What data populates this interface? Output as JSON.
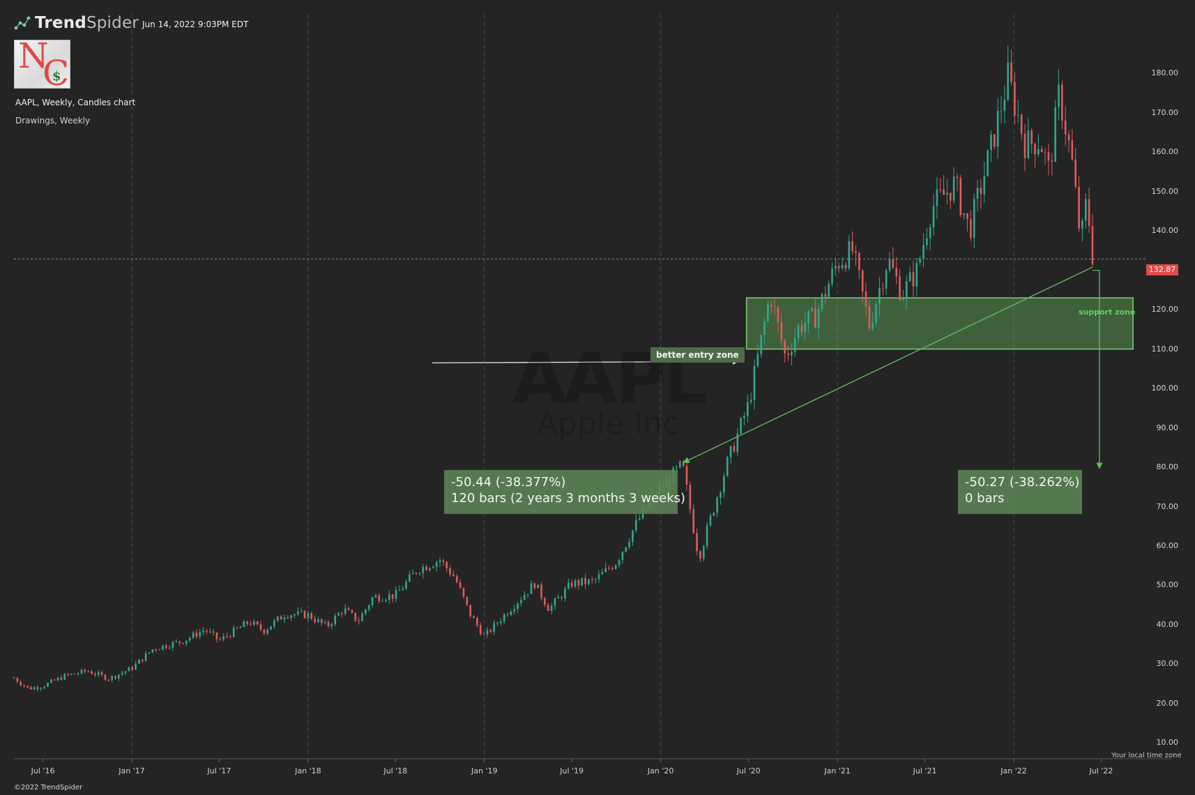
{
  "header": {
    "brand": "TrendSpider",
    "brand_bold": "Trend",
    "brand_light": "Spider",
    "timestamp": "Jun 14, 2022 9:03PM EDT",
    "title": "AAPL, Weekly, Candles chart",
    "subtitle": "Drawings, Weekly",
    "logo_letters": [
      "N",
      "C",
      "$"
    ]
  },
  "watermark": {
    "symbol": "AAPL",
    "name": "Apple Inc"
  },
  "footer": {
    "copyright": "©2022 TrendSpider",
    "timezone_note": "Your local time zone"
  },
  "colors": {
    "background": "#242424",
    "up_candle": "#31a88f",
    "down_candle": "#e35b5b",
    "annotation_green": "#5fbf5f",
    "price_tag": "#e04b4b"
  },
  "current_price": {
    "label": "132.87",
    "value": 132.87
  },
  "annotations": {
    "better_entry": "better entry zone",
    "support_zone": {
      "label": "support zone",
      "low": 110,
      "high": 123
    },
    "measure_left": {
      "line1": "-50.44 (-38.377%)",
      "line2": "120 bars (2 years 3 months 3 weeks)"
    },
    "measure_right": {
      "line1": "-50.27 (-38.262%)",
      "line2": "0 bars"
    }
  },
  "chart_data": {
    "type": "candlestick",
    "title": "AAPL, Weekly, Candles chart",
    "interval": "Weekly",
    "y_ticks": [
      "10.00",
      "20.00",
      "30.00",
      "40.00",
      "50.00",
      "60.00",
      "70.00",
      "80.00",
      "90.00",
      "100.00",
      "110.00",
      "120.00",
      "130.00",
      "140.00",
      "150.00",
      "160.00",
      "170.00",
      "180.00"
    ],
    "ylim": [
      6,
      188
    ],
    "x_ticks": [
      "Jul '16",
      "Jan '17",
      "Jul '17",
      "Jan '18",
      "Jul '18",
      "Jan '19",
      "Jul '19",
      "Jan '20",
      "Jul '20",
      "Jan '21",
      "Jul '21",
      "Jan '22",
      "Jul '22"
    ],
    "x_range": [
      "2016-05-02",
      "2022-09-12"
    ],
    "vertical_gridlines_at": [
      "Jan '17",
      "Jan '18",
      "Jan '19",
      "Jan '20",
      "Jan '21",
      "Jan '22"
    ],
    "close_path": [
      [
        "2016-05-02",
        26.5
      ],
      [
        "2016-06-01",
        23.8
      ],
      [
        "2016-07-01",
        24.5
      ],
      [
        "2016-08-15",
        27.0
      ],
      [
        "2016-10-01",
        28.3
      ],
      [
        "2016-11-15",
        26.3
      ],
      [
        "2017-01-01",
        29.0
      ],
      [
        "2017-02-15",
        34.0
      ],
      [
        "2017-04-15",
        35.8
      ],
      [
        "2017-06-01",
        38.8
      ],
      [
        "2017-07-01",
        36.0
      ],
      [
        "2017-09-01",
        40.8
      ],
      [
        "2017-10-01",
        38.5
      ],
      [
        "2017-11-15",
        42.8
      ],
      [
        "2018-01-01",
        42.5
      ],
      [
        "2018-02-08",
        39.5
      ],
      [
        "2018-03-15",
        44.0
      ],
      [
        "2018-04-15",
        41.0
      ],
      [
        "2018-05-15",
        47.0
      ],
      [
        "2018-07-01",
        47.5
      ],
      [
        "2018-08-15",
        54.0
      ],
      [
        "2018-10-01",
        56.5
      ],
      [
        "2018-11-01",
        52.0
      ],
      [
        "2018-12-01",
        43.0
      ],
      [
        "2019-01-01",
        37.0
      ],
      [
        "2019-02-15",
        43.0
      ],
      [
        "2019-04-15",
        50.5
      ],
      [
        "2019-05-15",
        44.0
      ],
      [
        "2019-07-01",
        50.5
      ],
      [
        "2019-08-15",
        51.0
      ],
      [
        "2019-10-01",
        56.0
      ],
      [
        "2019-11-15",
        66.5
      ],
      [
        "2020-01-01",
        74.5
      ],
      [
        "2020-02-15",
        80.5
      ],
      [
        "2020-03-20",
        57.0
      ],
      [
        "2020-05-15",
        80.0
      ],
      [
        "2020-07-01",
        96.0
      ],
      [
        "2020-08-15",
        124.0
      ],
      [
        "2020-09-15",
        108.0
      ],
      [
        "2020-10-15",
        116.0
      ],
      [
        "2020-11-15",
        118.0
      ],
      [
        "2021-01-01",
        132.0
      ],
      [
        "2021-02-01",
        135.0
      ],
      [
        "2021-03-08",
        116.0
      ],
      [
        "2021-04-15",
        133.0
      ],
      [
        "2021-05-15",
        124.0
      ],
      [
        "2021-06-15",
        130.0
      ],
      [
        "2021-07-15",
        146.0
      ],
      [
        "2021-09-01",
        152.0
      ],
      [
        "2021-10-01",
        140.0
      ],
      [
        "2021-11-15",
        161.0
      ],
      [
        "2021-12-20",
        179.0
      ],
      [
        "2022-01-25",
        162.0
      ],
      [
        "2022-02-25",
        163.0
      ],
      [
        "2022-03-15",
        155.0
      ],
      [
        "2022-04-05",
        175.0
      ],
      [
        "2022-05-01",
        158.0
      ],
      [
        "2022-05-20",
        137.0
      ],
      [
        "2022-06-01",
        148.0
      ],
      [
        "2022-06-14",
        132.9
      ]
    ],
    "measure_left": {
      "from": [
        "2020-02-17",
        81.2
      ],
      "to": [
        "2022-06-13",
        130.8
      ],
      "change": -50.44,
      "change_pct": -38.377,
      "bars": 120
    },
    "measure_right": {
      "from": [
        "2022-06-13",
        130.0
      ],
      "to": [
        "2022-06-13",
        79.7
      ],
      "change": -50.27,
      "change_pct": -38.262,
      "bars": 0
    },
    "support_zone": {
      "from": "2020-07-01",
      "to": "2022-09-05",
      "low": 110,
      "high": 123
    },
    "better_entry_arrow": {
      "from": "2018-09-15",
      "to": "2020-06-10",
      "y": 106.5
    }
  }
}
